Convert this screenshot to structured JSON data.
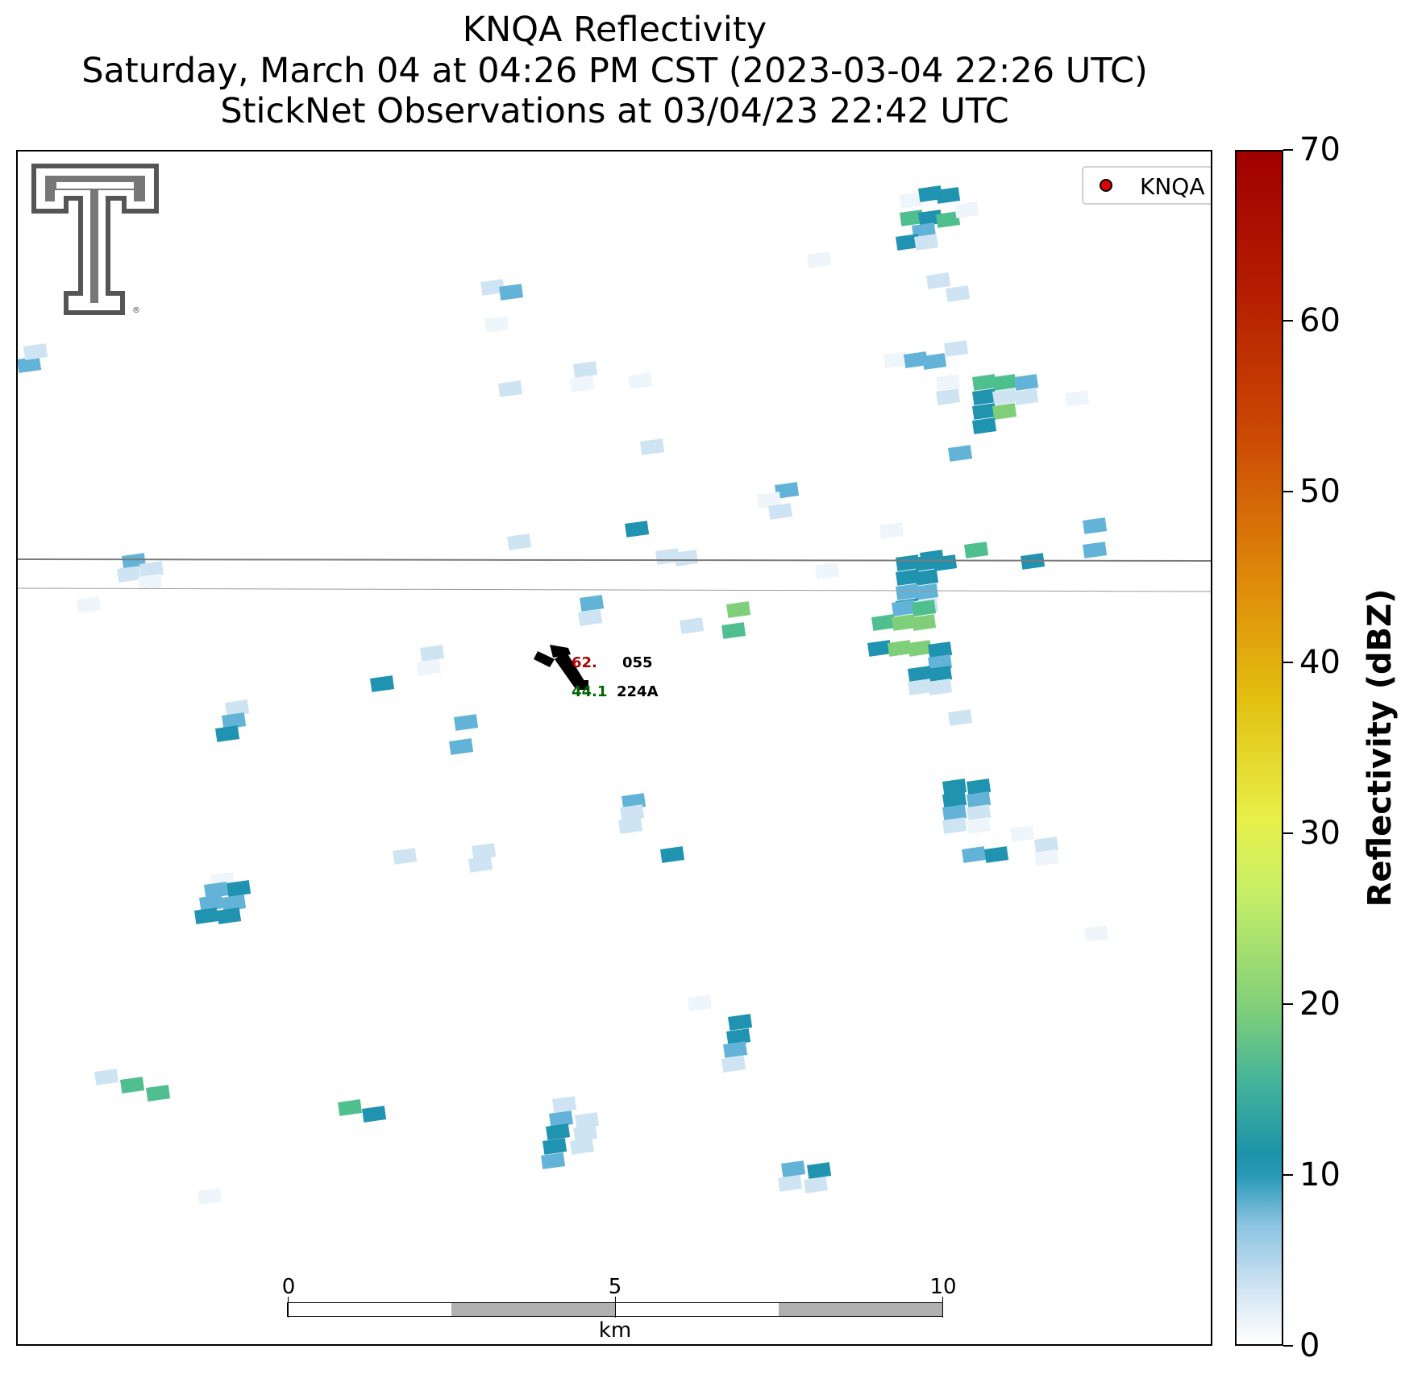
{
  "header": {
    "title": "KNQA Reflectivity",
    "subtitle": "Saturday, March 04 at 04:26 PM CST (2023-03-04 22:26 UTC)",
    "observations": "StickNet Observations at 03/04/23 22:42 UTC"
  },
  "legend": {
    "label": "KNQA",
    "marker_color": "#e00000"
  },
  "station": {
    "id": "055",
    "subid": "224A",
    "temp_value": "62.",
    "dewpoint_value": "44.1",
    "temp_color": "#b00000",
    "dewpoint_color": "#006400"
  },
  "scalebar": {
    "labels": [
      "0",
      "5",
      "10"
    ],
    "unit": "km"
  },
  "colorbar": {
    "label": "Reflectivity (dBZ)",
    "ticks": [
      "0",
      "10",
      "20",
      "30",
      "40",
      "50",
      "60",
      "70"
    ],
    "min": 0,
    "max": 70,
    "colors": {
      "light": "#cfe4f2",
      "mid": "#63b3d8",
      "teal": "#2093b0",
      "green": "#4fbf8f",
      "lightgreen": "#7fcf7a"
    }
  },
  "logo": {
    "name": "texas-tech-double-t-logo"
  }
}
